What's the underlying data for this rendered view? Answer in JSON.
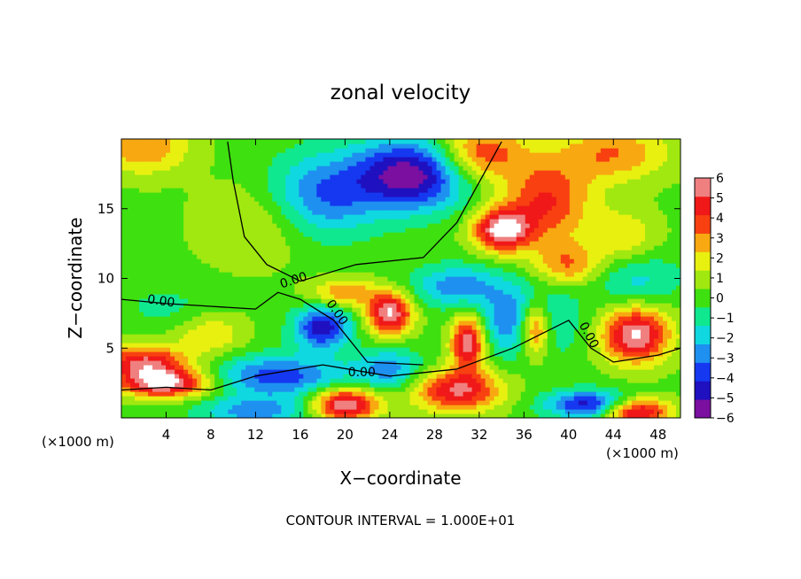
{
  "chart_data": {
    "type": "heatmap",
    "title": "zonal velocity",
    "xlabel": "X−coordinate",
    "ylabel": "Z−coordinate",
    "x_unit_label": "(×1000 m)",
    "xlim": [
      0,
      50
    ],
    "ylim": [
      0,
      20
    ],
    "x_ticks": [
      "4",
      "8",
      "12",
      "16",
      "20",
      "24",
      "28",
      "32",
      "36",
      "40",
      "44",
      "48"
    ],
    "y_ticks": [
      "5",
      "10",
      "15"
    ],
    "colorbar_ticks": [
      "6",
      "5",
      "4",
      "3",
      "2",
      "1",
      "0",
      "−1",
      "−2",
      "−3",
      "−4",
      "−5",
      "−6"
    ],
    "colorbar_range": [
      -6,
      6
    ],
    "contour_labels": [
      "0.00",
      "0.00",
      "0.00",
      "0.00",
      "0.00"
    ],
    "footer": "CONTOUR INTERVAL = 1.000E+01",
    "colormap": [
      "#7a0fa0",
      "#1f10c0",
      "#1538f0",
      "#1e90f0",
      "#10d8e0",
      "#10e890",
      "#3fe010",
      "#a0e810",
      "#e8f010",
      "#f8a810",
      "#f84010",
      "#f01818",
      "#f08080"
    ]
  }
}
